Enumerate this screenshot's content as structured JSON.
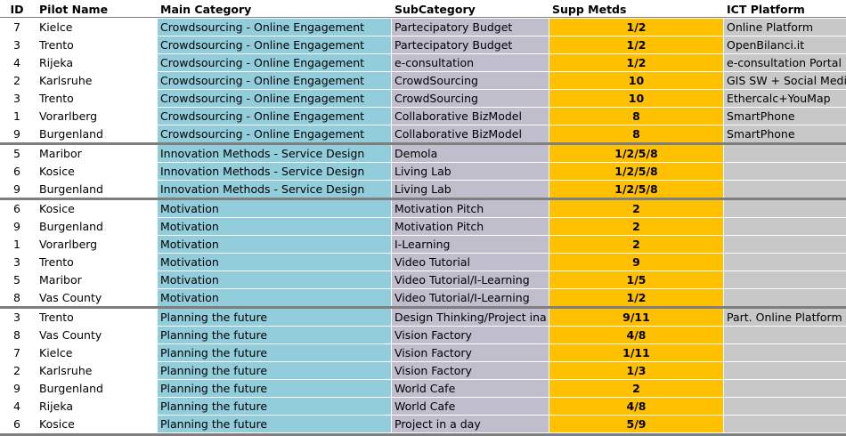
{
  "headers": {
    "id": "ID",
    "pilot": "Pilot Name",
    "main": "Main Category",
    "sub": "SubCategory",
    "supp": "Supp Metds",
    "ict": "ICT Platform"
  },
  "groups": [
    {
      "rows": [
        {
          "id": "7",
          "pilot": "Kielce",
          "main": "Crowdsourcing - Online Engagement",
          "sub": "Partecipatory Budget",
          "supp": "1/2",
          "ict": "Online Platform"
        },
        {
          "id": "3",
          "pilot": "Trento",
          "main": "Crowdsourcing - Online Engagement",
          "sub": "Partecipatory Budget",
          "supp": "1/2",
          "ict": "OpenBilanci.it"
        },
        {
          "id": "4",
          "pilot": "Rijeka",
          "main": "Crowdsourcing - Online Engagement",
          "sub": "e-consultation",
          "supp": "1/2",
          "ict": "e-consultation Portal"
        },
        {
          "id": "2",
          "pilot": "Karlsruhe",
          "main": "Crowdsourcing - Online Engagement",
          "sub": "CrowdSourcing",
          "supp": "10",
          "ict": "GIS SW + Social Media"
        },
        {
          "id": "3",
          "pilot": "Trento",
          "main": "Crowdsourcing - Online Engagement",
          "sub": "CrowdSourcing",
          "supp": "10",
          "ict": "Ethercalc+YouMap"
        },
        {
          "id": "1",
          "pilot": "Vorarlberg",
          "main": "Crowdsourcing - Online Engagement",
          "sub": "Collaborative BizModel",
          "supp": "8",
          "ict": "SmartPhone"
        },
        {
          "id": "9",
          "pilot": "Burgenland",
          "main": "Crowdsourcing - Online Engagement",
          "sub": "Collaborative BizModel",
          "supp": "8",
          "ict": "SmartPhone"
        }
      ]
    },
    {
      "rows": [
        {
          "id": "5",
          "pilot": "Maribor",
          "main": "Innovation Methods - Service Design",
          "sub": "Demola",
          "supp": "1/2/5/8",
          "ict": ""
        },
        {
          "id": "6",
          "pilot": "Kosice",
          "main": "Innovation Methods - Service Design",
          "sub": "Living Lab",
          "supp": "1/2/5/8",
          "ict": ""
        },
        {
          "id": "9",
          "pilot": "Burgenland",
          "main": "Innovation Methods - Service Design",
          "sub": "Living Lab",
          "supp": "1/2/5/8",
          "ict": ""
        }
      ]
    },
    {
      "rows": [
        {
          "id": "6",
          "pilot": "Kosice",
          "main": "Motivation",
          "sub": "Motivation Pitch",
          "supp": "2",
          "ict": ""
        },
        {
          "id": "9",
          "pilot": "Burgenland",
          "main": "Motivation",
          "sub": "Motivation Pitch",
          "supp": "2",
          "ict": ""
        },
        {
          "id": "1",
          "pilot": "Vorarlberg",
          "main": "Motivation",
          "sub": "I-Learning",
          "supp": "2",
          "ict": ""
        },
        {
          "id": "3",
          "pilot": "Trento",
          "main": "Motivation",
          "sub": "Video Tutorial",
          "supp": "9",
          "ict": ""
        },
        {
          "id": "5",
          "pilot": "Maribor",
          "main": "Motivation",
          "sub": "Video Tutorial/I-Learning",
          "supp": "1/5",
          "ict": ""
        },
        {
          "id": "8",
          "pilot": "Vas County",
          "main": "Motivation",
          "sub": "Video Tutorial/I-Learning",
          "supp": "1/2",
          "ict": ""
        }
      ]
    },
    {
      "rows": [
        {
          "id": "3",
          "pilot": "Trento",
          "main": "Planning the future",
          "sub": "Design Thinking/Project ina",
          "supp": "9/11",
          "ict": "Part. Online Platform"
        },
        {
          "id": "8",
          "pilot": "Vas County",
          "main": "Planning the future",
          "sub": "Vision Factory",
          "supp": "4/8",
          "ict": ""
        },
        {
          "id": "7",
          "pilot": "Kielce",
          "main": "Planning the future",
          "sub": "Vision Factory",
          "supp": "1/11",
          "ict": ""
        },
        {
          "id": "2",
          "pilot": "Karlsruhe",
          "main": "Planning the future",
          "sub": "Vision Factory",
          "supp": "1/3",
          "ict": ""
        },
        {
          "id": "9",
          "pilot": "Burgenland",
          "main": "Planning the future",
          "sub": "World Cafe",
          "supp": "2",
          "ict": ""
        },
        {
          "id": "4",
          "pilot": "Rijeka",
          "main": "Planning the future",
          "sub": "World Cafe",
          "supp": "4/8",
          "ict": ""
        },
        {
          "id": "6",
          "pilot": "Kosice",
          "main": "Planning the future",
          "sub": "Project in a day",
          "supp": "5/9",
          "ict": ""
        }
      ]
    }
  ]
}
